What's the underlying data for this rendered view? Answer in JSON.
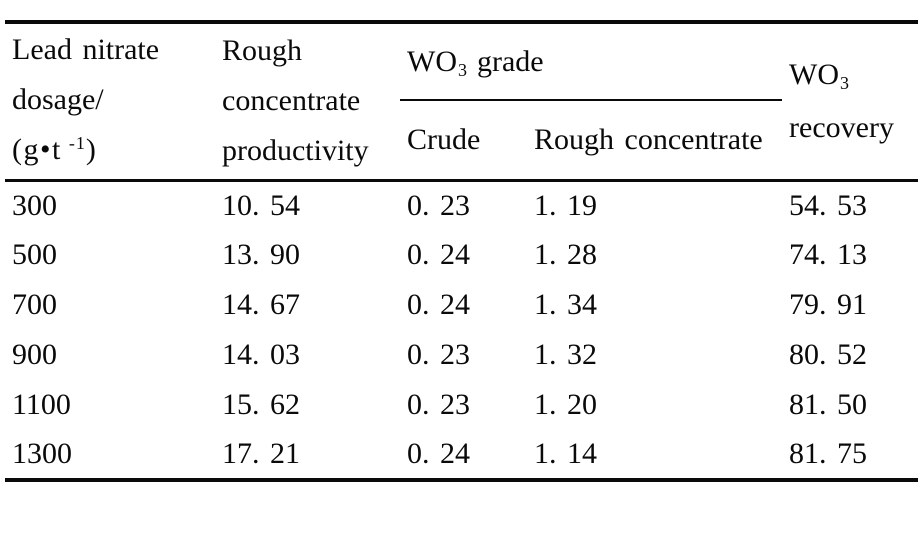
{
  "table": {
    "headers": {
      "col1": {
        "line1": "Lead nitrate",
        "line2": "dosage/",
        "unit_pre": "(g•t",
        "unit_sup": "-1",
        "unit_post": ")"
      },
      "col2": {
        "line1": "Rough",
        "line2": "concentrate",
        "line3": "productivity"
      },
      "grade_group": {
        "formula_pre": "WO",
        "formula_sub": "3",
        "label": "grade"
      },
      "sub_columns": {
        "crude": "Crude",
        "rough_concentrate": "Rough concentrate"
      },
      "col5": {
        "formula_pre": "WO",
        "formula_sub": "3",
        "line2": "recovery"
      }
    },
    "rows": [
      {
        "dosage": "300",
        "productivity": "10. 54",
        "crude_grade": "0. 23",
        "rough_grade": "1. 19",
        "recovery": "54. 53"
      },
      {
        "dosage": "500",
        "productivity": "13. 90",
        "crude_grade": "0. 24",
        "rough_grade": "1. 28",
        "recovery": "74. 13"
      },
      {
        "dosage": "700",
        "productivity": "14. 67",
        "crude_grade": "0. 24",
        "rough_grade": "1. 34",
        "recovery": "79. 91"
      },
      {
        "dosage": "900",
        "productivity": "14. 03",
        "crude_grade": "0. 23",
        "rough_grade": "1. 32",
        "recovery": "80. 52"
      },
      {
        "dosage": "1100",
        "productivity": "15. 62",
        "crude_grade": "0. 23",
        "rough_grade": "1. 20",
        "recovery": "81. 50"
      },
      {
        "dosage": "1300",
        "productivity": "17. 21",
        "crude_grade": "0. 24",
        "rough_grade": "1. 14",
        "recovery": "81. 75"
      }
    ],
    "colors": {
      "text": "#0a0a0a",
      "background": "#ffffff",
      "rule": "#0a0a0a"
    }
  }
}
